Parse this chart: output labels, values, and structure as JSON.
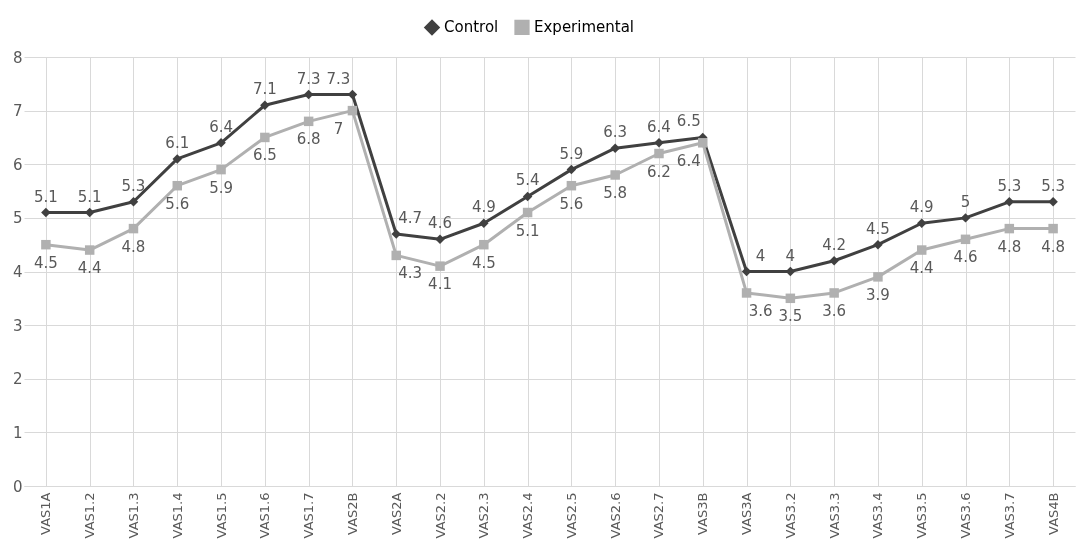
{
  "chart_data": {
    "type": "line",
    "categories": [
      "VAS1A",
      "VAS1.2",
      "VAS1.3",
      "VAS1.4",
      "VAS1.5",
      "VAS1.6",
      "VAS1.7",
      "VAS2B",
      "VAS2A",
      "VAS2.2",
      "VAS2.3",
      "VAS2.4",
      "VAS2.5",
      "VAS2.6",
      "VAS2.7",
      "VAS3B",
      "VAS3A",
      "VAS3.2",
      "VAS3.3",
      "VAS3.4",
      "VAS3.5",
      "VAS3.6",
      "VAS3.7",
      "VAS4B"
    ],
    "series": [
      {
        "name": "Control",
        "color": "#404040",
        "marker": "diamond",
        "values": [
          5.1,
          5.1,
          5.3,
          6.1,
          6.4,
          7.1,
          7.3,
          7.3,
          4.7,
          4.6,
          4.9,
          5.4,
          5.9,
          6.3,
          6.4,
          6.5,
          4,
          4,
          4.2,
          4.5,
          4.9,
          5,
          5.3,
          5.3
        ]
      },
      {
        "name": "Experimental",
        "color": "#b0b0b0",
        "marker": "square",
        "values": [
          4.5,
          4.4,
          4.8,
          5.6,
          5.9,
          6.5,
          6.8,
          7,
          4.3,
          4.1,
          4.5,
          5.1,
          5.6,
          5.8,
          6.2,
          6.4,
          3.6,
          3.5,
          3.6,
          3.9,
          4.4,
          4.6,
          4.8,
          4.8
        ]
      }
    ],
    "ylim": [
      0,
      8
    ],
    "yticks": [
      0,
      1,
      2,
      3,
      4,
      5,
      6,
      7,
      8
    ],
    "grid": true,
    "legend": "top",
    "data_labels": true,
    "line_style": "solid"
  }
}
